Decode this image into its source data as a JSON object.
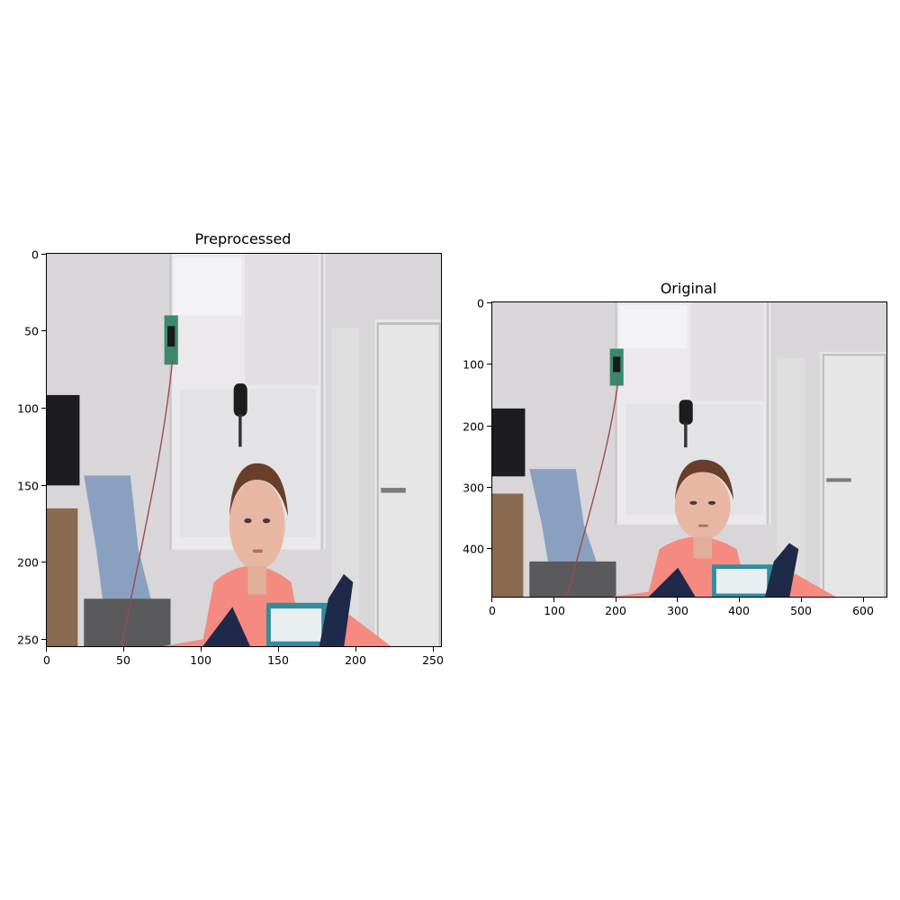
{
  "panels": [
    {
      "title": "Preprocessed",
      "image": "room-photo-woman-with-head-sensor-and-chest-device",
      "x_ticks": [
        "0",
        "50",
        "100",
        "150",
        "200",
        "250"
      ],
      "y_ticks": [
        "0",
        "50",
        "100",
        "150",
        "200",
        "250"
      ],
      "x_range": [
        0,
        256
      ],
      "y_range": [
        256,
        0
      ]
    },
    {
      "title": "Original",
      "image": "room-photo-woman-with-head-sensor-and-chest-device",
      "x_ticks": [
        "0",
        "100",
        "200",
        "300",
        "400",
        "500",
        "600"
      ],
      "y_ticks": [
        "0",
        "100",
        "200",
        "300",
        "400"
      ],
      "x_range": [
        0,
        640
      ],
      "y_range": [
        480,
        0
      ]
    }
  ],
  "colors": {
    "wall": "#dcdcdc",
    "shirt": "#f48a80",
    "strap": "#1f2a4a",
    "chair": "#8aa0c0",
    "door": "#e4e4e4",
    "sensor_green": "#3a8a6a"
  }
}
